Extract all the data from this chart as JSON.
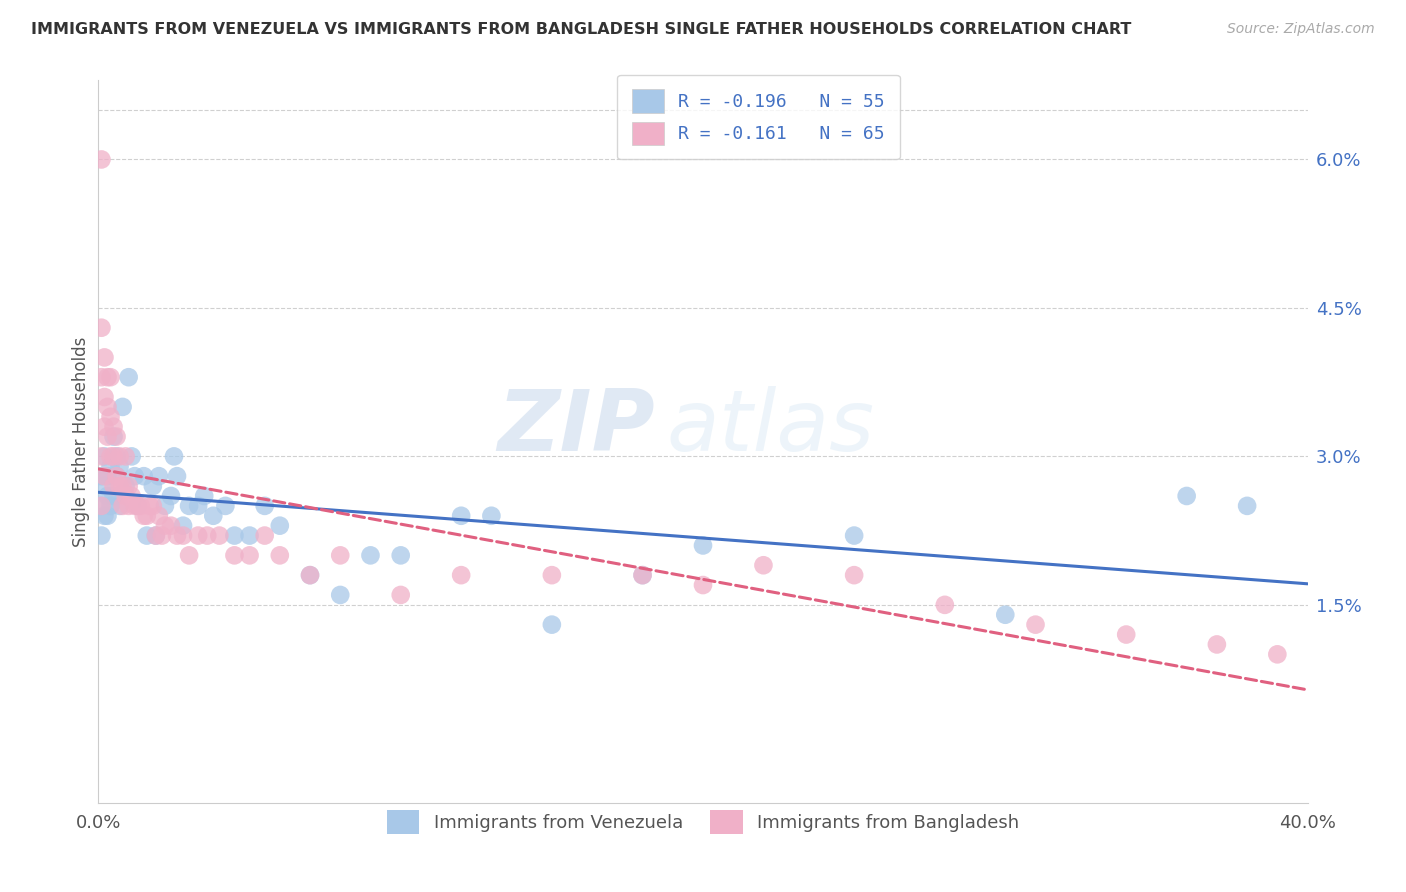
{
  "title": "IMMIGRANTS FROM VENEZUELA VS IMMIGRANTS FROM BANGLADESH SINGLE FATHER HOUSEHOLDS CORRELATION CHART",
  "source": "Source: ZipAtlas.com",
  "ylabel": "Single Father Households",
  "yticks": [
    "6.0%",
    "4.5%",
    "3.0%",
    "1.5%"
  ],
  "ytick_vals": [
    0.06,
    0.045,
    0.03,
    0.015
  ],
  "legend_label1": "R = -0.196   N = 55",
  "legend_label2": "R = -0.161   N = 65",
  "color_venezuela": "#a8c8e8",
  "color_venezuela_line": "#4472c4",
  "color_bangladesh": "#f0b0c8",
  "color_bangladesh_line": "#e06080",
  "watermark_zip": "ZIP",
  "watermark_atlas": "atlas",
  "bottom_label1": "Immigrants from Venezuela",
  "bottom_label2": "Immigrants from Bangladesh",
  "xlim": [
    0.0,
    0.4
  ],
  "ylim": [
    -0.005,
    0.068
  ],
  "venezuela_x": [
    0.001,
    0.001,
    0.001,
    0.002,
    0.002,
    0.002,
    0.003,
    0.003,
    0.003,
    0.004,
    0.004,
    0.005,
    0.005,
    0.006,
    0.006,
    0.007,
    0.007,
    0.008,
    0.009,
    0.01,
    0.011,
    0.012,
    0.013,
    0.015,
    0.016,
    0.018,
    0.019,
    0.02,
    0.022,
    0.024,
    0.025,
    0.026,
    0.028,
    0.03,
    0.033,
    0.035,
    0.038,
    0.042,
    0.045,
    0.05,
    0.055,
    0.06,
    0.07,
    0.08,
    0.09,
    0.1,
    0.12,
    0.13,
    0.15,
    0.18,
    0.2,
    0.25,
    0.3,
    0.36,
    0.38
  ],
  "venezuela_y": [
    0.028,
    0.025,
    0.022,
    0.03,
    0.027,
    0.024,
    0.028,
    0.026,
    0.024,
    0.029,
    0.025,
    0.032,
    0.026,
    0.028,
    0.03,
    0.029,
    0.025,
    0.035,
    0.027,
    0.038,
    0.03,
    0.028,
    0.025,
    0.028,
    0.022,
    0.027,
    0.022,
    0.028,
    0.025,
    0.026,
    0.03,
    0.028,
    0.023,
    0.025,
    0.025,
    0.026,
    0.024,
    0.025,
    0.022,
    0.022,
    0.025,
    0.023,
    0.018,
    0.016,
    0.02,
    0.02,
    0.024,
    0.024,
    0.013,
    0.018,
    0.021,
    0.022,
    0.014,
    0.026,
    0.025
  ],
  "bangladesh_x": [
    0.001,
    0.001,
    0.001,
    0.001,
    0.002,
    0.002,
    0.002,
    0.002,
    0.003,
    0.003,
    0.003,
    0.004,
    0.004,
    0.004,
    0.005,
    0.005,
    0.005,
    0.006,
    0.006,
    0.007,
    0.007,
    0.008,
    0.008,
    0.009,
    0.009,
    0.01,
    0.01,
    0.011,
    0.012,
    0.013,
    0.014,
    0.015,
    0.016,
    0.017,
    0.018,
    0.019,
    0.02,
    0.021,
    0.022,
    0.024,
    0.026,
    0.028,
    0.03,
    0.033,
    0.036,
    0.04,
    0.045,
    0.05,
    0.055,
    0.06,
    0.07,
    0.08,
    0.1,
    0.12,
    0.15,
    0.18,
    0.2,
    0.22,
    0.25,
    0.28,
    0.31,
    0.34,
    0.37,
    0.39,
    0.001
  ],
  "bangladesh_y": [
    0.06,
    0.043,
    0.038,
    0.03,
    0.04,
    0.036,
    0.033,
    0.028,
    0.038,
    0.035,
    0.032,
    0.038,
    0.034,
    0.03,
    0.033,
    0.03,
    0.027,
    0.032,
    0.028,
    0.03,
    0.027,
    0.027,
    0.025,
    0.03,
    0.026,
    0.027,
    0.025,
    0.026,
    0.025,
    0.025,
    0.025,
    0.024,
    0.024,
    0.025,
    0.025,
    0.022,
    0.024,
    0.022,
    0.023,
    0.023,
    0.022,
    0.022,
    0.02,
    0.022,
    0.022,
    0.022,
    0.02,
    0.02,
    0.022,
    0.02,
    0.018,
    0.02,
    0.016,
    0.018,
    0.018,
    0.018,
    0.017,
    0.019,
    0.018,
    0.015,
    0.013,
    0.012,
    0.011,
    0.01,
    0.025
  ],
  "ven_line_x": [
    0.0,
    0.4
  ],
  "ven_line_y": [
    0.026,
    0.016
  ],
  "bang_line_x": [
    0.0,
    0.3
  ],
  "bang_line_y": [
    0.025,
    0.018
  ]
}
